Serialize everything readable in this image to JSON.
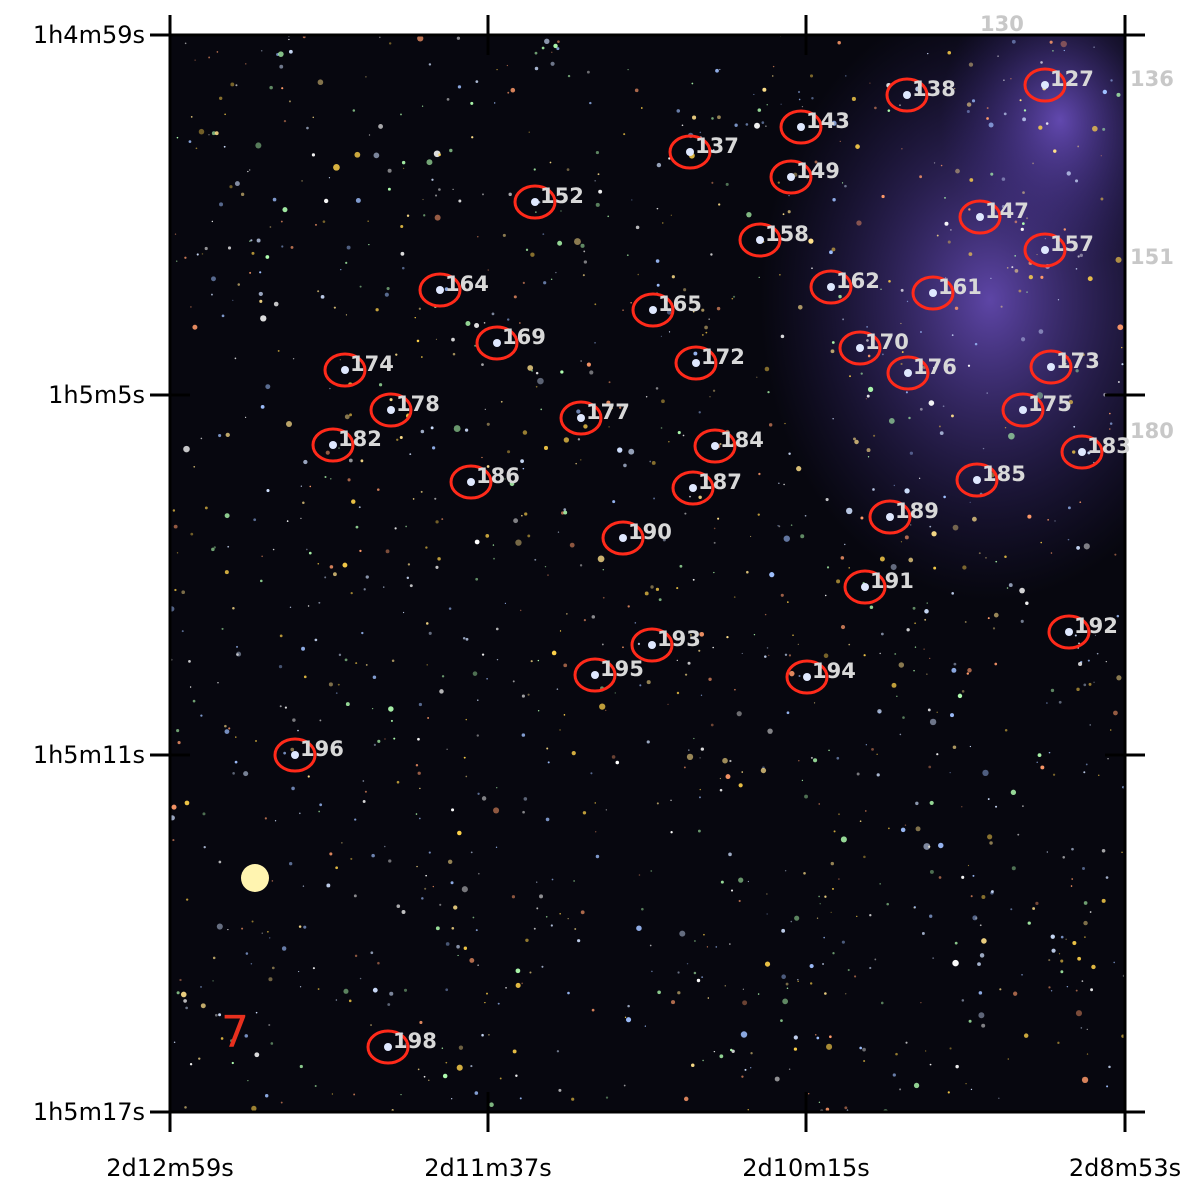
{
  "axes": {
    "y_ticks": [
      "1h4m59s",
      "1h5m5s",
      "1h5m11s",
      "1h5m17s"
    ],
    "x_ticks": [
      "2d12m59s",
      "2d11m37s",
      "2d10m15s",
      "2d8m53s"
    ]
  },
  "panel_label": "7",
  "regions": [
    {
      "label": "130"
    },
    {
      "label": "127"
    },
    {
      "label": "136"
    },
    {
      "label": "138"
    },
    {
      "label": "143"
    },
    {
      "label": "137"
    },
    {
      "label": "149"
    },
    {
      "label": "152"
    },
    {
      "label": "147"
    },
    {
      "label": "158"
    },
    {
      "label": "157"
    },
    {
      "label": "151"
    },
    {
      "label": "162"
    },
    {
      "label": "161"
    },
    {
      "label": "164"
    },
    {
      "label": "165"
    },
    {
      "label": "169"
    },
    {
      "label": "170"
    },
    {
      "label": "174"
    },
    {
      "label": "172"
    },
    {
      "label": "176"
    },
    {
      "label": "173"
    },
    {
      "label": "178"
    },
    {
      "label": "177"
    },
    {
      "label": "175"
    },
    {
      "label": "182"
    },
    {
      "label": "180"
    },
    {
      "label": "184"
    },
    {
      "label": "183"
    },
    {
      "label": "186"
    },
    {
      "label": "187"
    },
    {
      "label": "185"
    },
    {
      "label": "189"
    },
    {
      "label": "190"
    },
    {
      "label": "191"
    },
    {
      "label": "192"
    },
    {
      "label": "193"
    },
    {
      "label": "195"
    },
    {
      "label": "194"
    },
    {
      "label": "196"
    },
    {
      "label": "198"
    }
  ]
}
